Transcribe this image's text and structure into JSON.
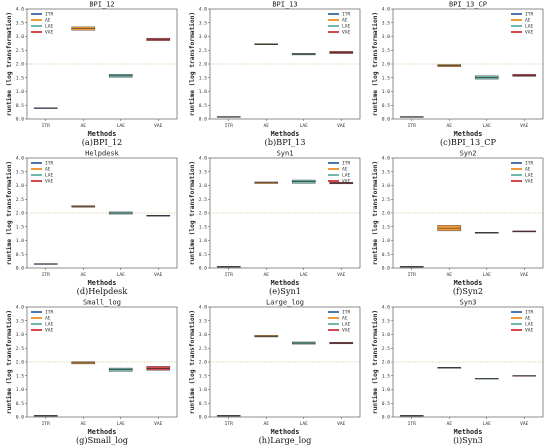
{
  "colors": {
    "ITR": "#4c78b0",
    "AE": "#f09a3a",
    "LAE": "#72b8ad",
    "VAE": "#d5484e",
    "refline": "#d9d9a8"
  },
  "legend": [
    "ITR",
    "AE",
    "LAE",
    "VAE"
  ],
  "chart_data": [
    {
      "type": "box",
      "title": "BPI_12",
      "caption": "(a)BPI_12",
      "xlabel": "Methods",
      "ylabel": "runtime (log transformation)",
      "categories": [
        "ITR",
        "AE",
        "LAE",
        "VAE"
      ],
      "yticks": [
        "0.0",
        "0.5",
        "1.0",
        "1.5",
        "2.0",
        "2.5",
        "3.0",
        "3.5",
        "4.0"
      ],
      "ylim": [
        0,
        4
      ],
      "reference_line": 2.0,
      "legend": "top-left",
      "series": [
        {
          "name": "ITR",
          "values": [
            0.39,
            0.4,
            0.41
          ]
        },
        {
          "name": "AE",
          "values": [
            3.23,
            3.3,
            3.35
          ]
        },
        {
          "name": "LAE",
          "values": [
            1.52,
            1.57,
            1.63
          ]
        },
        {
          "name": "VAE",
          "values": [
            2.85,
            2.9,
            2.94
          ]
        }
      ]
    },
    {
      "type": "box",
      "title": "BPI_13",
      "caption": "(b)BPI_13",
      "xlabel": "Methods",
      "ylabel": "runtime (log transformation)",
      "categories": [
        "ITR",
        "AE",
        "LAE",
        "VAE"
      ],
      "yticks": [
        "0.0",
        "0.5",
        "1.0",
        "1.5",
        "2.0",
        "2.5",
        "3.0",
        "3.5",
        "4.0"
      ],
      "ylim": [
        0,
        4
      ],
      "reference_line": 2.0,
      "legend": "top-right",
      "series": [
        {
          "name": "ITR",
          "values": [
            0.07,
            0.08,
            0.09
          ]
        },
        {
          "name": "AE",
          "values": [
            2.7,
            2.72,
            2.74
          ]
        },
        {
          "name": "LAE",
          "values": [
            2.33,
            2.36,
            2.39
          ]
        },
        {
          "name": "VAE",
          "values": [
            2.38,
            2.42,
            2.46
          ]
        }
      ]
    },
    {
      "type": "box",
      "title": "BPI_13_CP",
      "caption": "(c)BPI_13_CP",
      "xlabel": "Methods",
      "ylabel": "runtime (log transformation)",
      "categories": [
        "ITR",
        "AE",
        "LAE",
        "VAE"
      ],
      "yticks": [
        "0.0",
        "0.5",
        "1.0",
        "1.5",
        "2.0",
        "2.5",
        "3.0",
        "3.5",
        "4.0"
      ],
      "ylim": [
        0,
        4
      ],
      "reference_line": 2.0,
      "legend": "top-right",
      "series": [
        {
          "name": "ITR",
          "values": [
            0.07,
            0.08,
            0.09
          ]
        },
        {
          "name": "AE",
          "values": [
            1.9,
            1.94,
            1.98
          ]
        },
        {
          "name": "LAE",
          "values": [
            1.45,
            1.51,
            1.57
          ]
        },
        {
          "name": "VAE",
          "values": [
            1.55,
            1.59,
            1.63
          ]
        }
      ]
    },
    {
      "type": "box",
      "title": "Helpdesk",
      "caption": "(d)Helpdesk",
      "xlabel": "Methods",
      "ylabel": "runtime (log transformation)",
      "categories": [
        "ITR",
        "AE",
        "LAE",
        "VAE"
      ],
      "yticks": [
        "0.0",
        "0.5",
        "1.0",
        "1.5",
        "2.0",
        "2.5",
        "3.0",
        "3.5",
        "4.0"
      ],
      "ylim": [
        0,
        4
      ],
      "reference_line": 2.0,
      "legend": "top-left",
      "series": [
        {
          "name": "ITR",
          "values": [
            0.14,
            0.15,
            0.16
          ]
        },
        {
          "name": "AE",
          "values": [
            2.21,
            2.24,
            2.27
          ]
        },
        {
          "name": "LAE",
          "values": [
            1.96,
            2.0,
            2.04
          ]
        },
        {
          "name": "VAE",
          "values": [
            1.88,
            1.9,
            1.92
          ]
        }
      ]
    },
    {
      "type": "box",
      "title": "Syn1",
      "caption": "(e)Syn1",
      "xlabel": "Methods",
      "ylabel": "runtime (log transformation)",
      "categories": [
        "ITR",
        "AE",
        "LAE",
        "VAE"
      ],
      "yticks": [
        "0.0",
        "0.5",
        "1.0",
        "1.5",
        "2.0",
        "2.5",
        "3.0",
        "3.5",
        "4.0"
      ],
      "ylim": [
        0,
        4
      ],
      "reference_line": 2.0,
      "legend": "top-right",
      "series": [
        {
          "name": "ITR",
          "values": [
            0.04,
            0.05,
            0.06
          ]
        },
        {
          "name": "AE",
          "values": [
            3.07,
            3.1,
            3.13
          ]
        },
        {
          "name": "LAE",
          "values": [
            3.08,
            3.14,
            3.2
          ]
        },
        {
          "name": "VAE",
          "values": [
            3.06,
            3.09,
            3.12
          ]
        }
      ]
    },
    {
      "type": "box",
      "title": "Syn2",
      "caption": "(f)Syn2",
      "xlabel": "Methods",
      "ylabel": "runtime (log transformation)",
      "categories": [
        "ITR",
        "AE",
        "LAE",
        "VAE"
      ],
      "yticks": [
        "0.0",
        "0.5",
        "1.0",
        "1.5",
        "2.0",
        "2.5",
        "3.0",
        "3.5",
        "4.0"
      ],
      "ylim": [
        0,
        4
      ],
      "reference_line": 2.0,
      "legend": "top-right",
      "series": [
        {
          "name": "ITR",
          "values": [
            0.04,
            0.05,
            0.06
          ]
        },
        {
          "name": "AE",
          "values": [
            1.35,
            1.45,
            1.55
          ]
        },
        {
          "name": "LAE",
          "values": [
            1.26,
            1.28,
            1.3
          ]
        },
        {
          "name": "VAE",
          "values": [
            1.31,
            1.33,
            1.35
          ]
        }
      ]
    },
    {
      "type": "box",
      "title": "Small_log",
      "caption": "(g)Small_log",
      "xlabel": "Methods",
      "ylabel": "runtime (log transformation)",
      "categories": [
        "ITR",
        "AE",
        "LAE",
        "VAE"
      ],
      "yticks": [
        "0.0",
        "0.5",
        "1.0",
        "1.5",
        "2.0",
        "2.5",
        "3.0",
        "3.5",
        "4.0"
      ],
      "ylim": [
        0,
        4
      ],
      "reference_line": 2.0,
      "legend": "top-left",
      "series": [
        {
          "name": "ITR",
          "values": [
            0.04,
            0.05,
            0.06
          ]
        },
        {
          "name": "AE",
          "values": [
            1.93,
            1.97,
            2.01
          ]
        },
        {
          "name": "LAE",
          "values": [
            1.66,
            1.72,
            1.78
          ]
        },
        {
          "name": "VAE",
          "values": [
            1.7,
            1.77,
            1.84
          ]
        }
      ]
    },
    {
      "type": "box",
      "title": "Large_log",
      "caption": "(h)Large_log",
      "xlabel": "Methods",
      "ylabel": "runtime (log transformation)",
      "categories": [
        "ITR",
        "AE",
        "LAE",
        "VAE"
      ],
      "yticks": [
        "0.0",
        "0.5",
        "1.0",
        "1.5",
        "2.0",
        "2.5",
        "3.0",
        "3.5",
        "4.0"
      ],
      "ylim": [
        0,
        4
      ],
      "reference_line": 2.0,
      "legend": "top-right",
      "series": [
        {
          "name": "ITR",
          "values": [
            0.04,
            0.05,
            0.06
          ]
        },
        {
          "name": "AE",
          "values": [
            2.91,
            2.94,
            2.97
          ]
        },
        {
          "name": "LAE",
          "values": [
            2.65,
            2.69,
            2.73
          ]
        },
        {
          "name": "VAE",
          "values": [
            2.66,
            2.69,
            2.72
          ]
        }
      ]
    },
    {
      "type": "box",
      "title": "Syn3",
      "caption": "(i)Syn3",
      "xlabel": "Methods",
      "ylabel": "runtime (log transformation)",
      "categories": [
        "ITR",
        "AE",
        "LAE",
        "VAE"
      ],
      "yticks": [
        "0.0",
        "0.5",
        "1.0",
        "1.5",
        "2.0",
        "2.5",
        "3.0",
        "3.5",
        "4.0"
      ],
      "ylim": [
        0,
        4
      ],
      "reference_line": 2.0,
      "legend": "top-right",
      "series": [
        {
          "name": "ITR",
          "values": [
            0.04,
            0.05,
            0.06
          ]
        },
        {
          "name": "AE",
          "values": [
            1.77,
            1.79,
            1.81
          ]
        },
        {
          "name": "LAE",
          "values": [
            1.39,
            1.4,
            1.41
          ]
        },
        {
          "name": "VAE",
          "values": [
            1.49,
            1.5,
            1.51
          ]
        }
      ]
    }
  ]
}
